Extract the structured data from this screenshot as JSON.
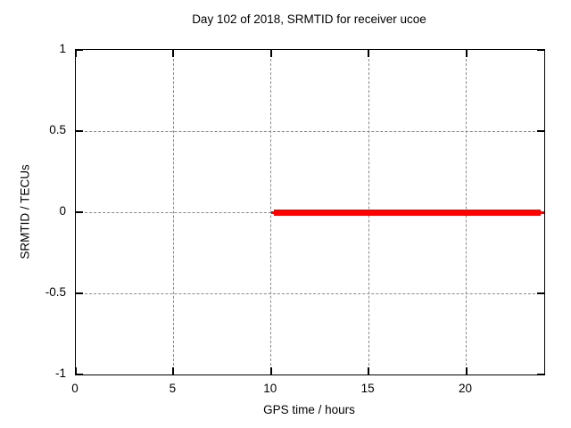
{
  "chart_data": {
    "type": "line",
    "title": "Day 102 of 2018, SRMTID for receiver ucoe",
    "xlabel": "GPS time / hours",
    "ylabel": "SRMTID / TECUs",
    "xlim": [
      0,
      24
    ],
    "ylim": [
      -1,
      1
    ],
    "xticks": [
      0,
      5,
      10,
      15,
      20
    ],
    "xtick_labels": [
      "0",
      "5",
      "10",
      "15",
      "20"
    ],
    "yticks": [
      -1,
      -0.5,
      0,
      0.5,
      1
    ],
    "ytick_labels": [
      "-1",
      "-0.5",
      "0",
      "0.5",
      "1"
    ],
    "grid": true,
    "grid_color": "#8a8a8a",
    "background_color": "#ffffff",
    "border_color": "#000000",
    "legend": "none",
    "series": [
      {
        "name": "SRMTID",
        "color": "#ff0000",
        "description": "constant value 0 TECUs from GPS time 10.05 h to 24 h",
        "segments": [
          {
            "x_start": 10.0,
            "x_end": 24.0,
            "y": 0,
            "thickness": "thin"
          },
          {
            "x_start": 10.15,
            "x_end": 23.8,
            "y": 0,
            "thickness": "thick"
          }
        ]
      }
    ]
  }
}
